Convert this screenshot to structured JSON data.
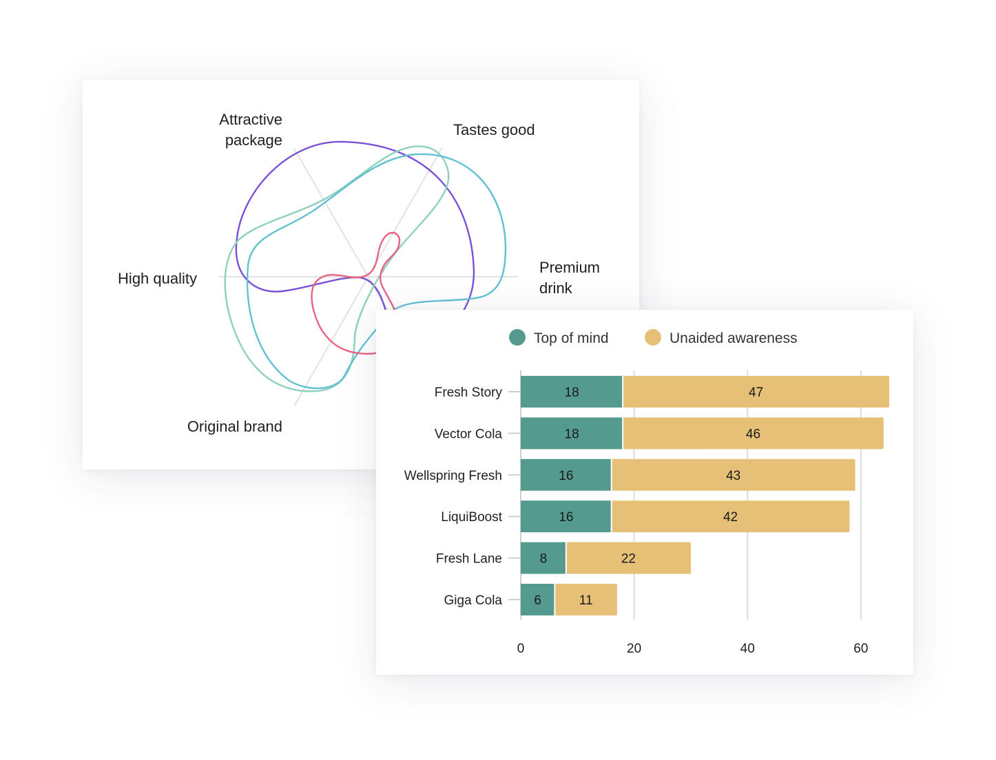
{
  "chart_data": [
    {
      "type": "radar",
      "axes": [
        "Attractive package",
        "Tastes good",
        "Premium drink",
        "High quality",
        "Original brand"
      ],
      "series": [
        {
          "color": "#7b4fd8"
        },
        {
          "color": "#8fd0bc"
        },
        {
          "color": "#62c0d3"
        },
        {
          "color": "#e8637f"
        }
      ],
      "grid": true,
      "legend": "none"
    },
    {
      "type": "bar",
      "orientation": "horizontal",
      "stacked": true,
      "categories": [
        "Fresh Story",
        "Vector Cola",
        "Wellspring Fresh",
        "LiquiBoost",
        "Fresh Lane",
        "Giga Cola"
      ],
      "series": [
        {
          "name": "Top of mind",
          "color": "#559a8f",
          "values": [
            18,
            18,
            16,
            16,
            8,
            6
          ]
        },
        {
          "name": "Unaided awareness",
          "color": "#e6c077",
          "values": [
            47,
            46,
            43,
            42,
            22,
            11
          ]
        }
      ],
      "xticks": [
        0,
        20,
        40,
        60
      ],
      "xlim": [
        0,
        65
      ],
      "grid": true,
      "legend": "top"
    }
  ]
}
